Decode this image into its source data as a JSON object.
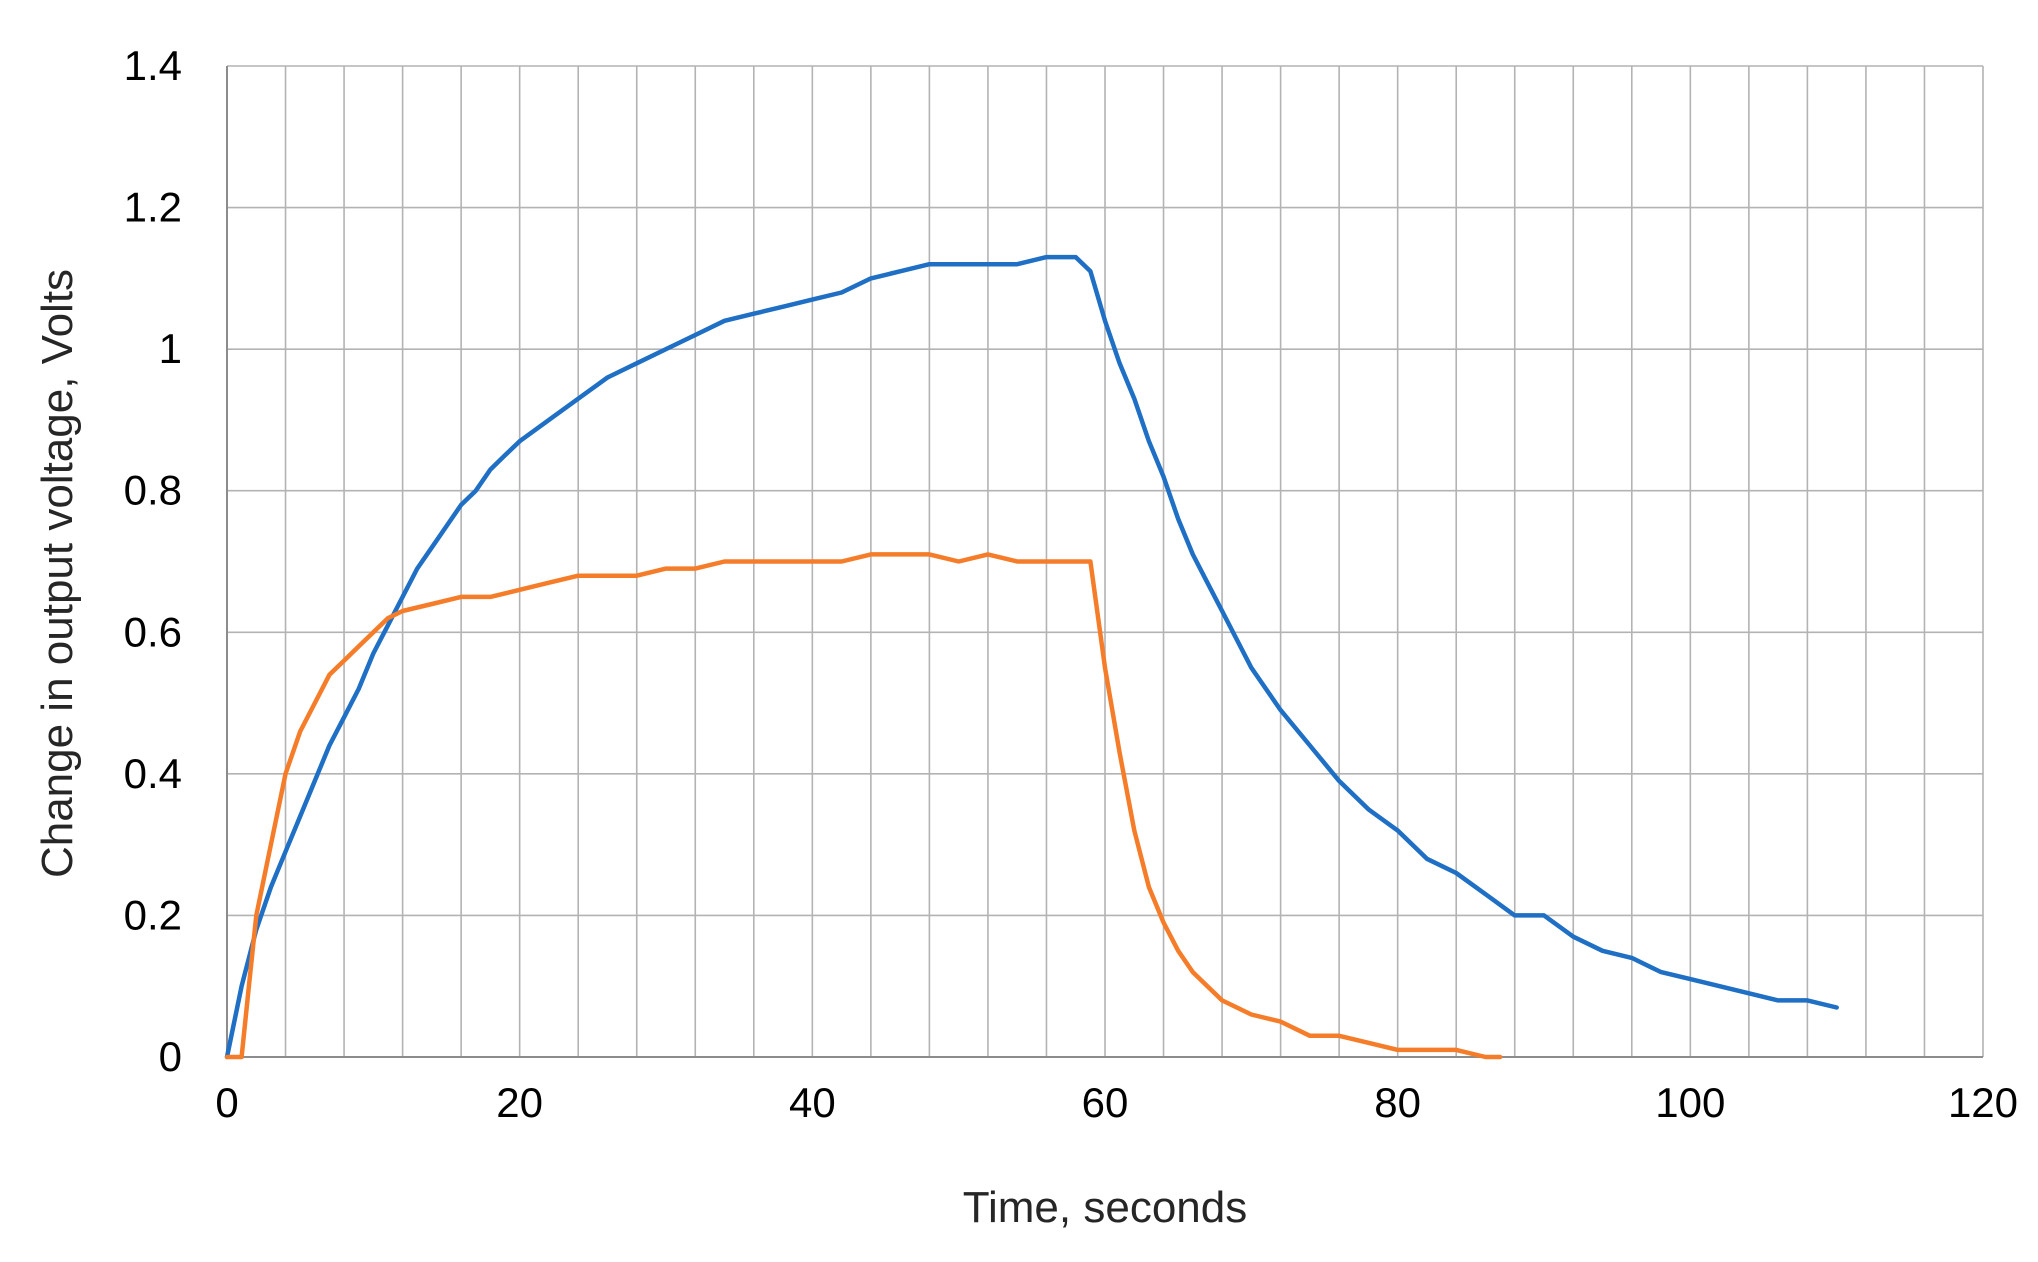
{
  "chart_data": {
    "type": "line",
    "title": "",
    "xlabel": "Time, seconds",
    "ylabel": "Change in output voltage, Volts",
    "xlim": [
      0,
      120
    ],
    "ylim": [
      0,
      1.4
    ],
    "x_major_ticks": [
      "0",
      "20",
      "40",
      "60",
      "80",
      "100",
      "120"
    ],
    "y_major_ticks": [
      "0",
      "0.2",
      "0.4",
      "0.6",
      "0.8",
      "1",
      "1.2",
      "1.4"
    ],
    "x_minor_step": 4,
    "y_minor_step": 0.2,
    "grid": true,
    "legend": "none",
    "series": [
      {
        "color": "#1f6fc5",
        "x": [
          0,
          1,
          2,
          3,
          4,
          5,
          6,
          7,
          8,
          9,
          10,
          11,
          12,
          13,
          14,
          15,
          16,
          17,
          18,
          19,
          20,
          22,
          24,
          26,
          28,
          30,
          32,
          34,
          36,
          38,
          40,
          42,
          44,
          46,
          48,
          50,
          52,
          54,
          56,
          58,
          59,
          60,
          61,
          62,
          63,
          64,
          65,
          66,
          67,
          68,
          69,
          70,
          72,
          74,
          76,
          78,
          80,
          82,
          84,
          86,
          88,
          90,
          92,
          94,
          96,
          98,
          100,
          102,
          104,
          106,
          108,
          110
        ],
        "y": [
          0,
          0.1,
          0.18,
          0.24,
          0.29,
          0.34,
          0.39,
          0.44,
          0.48,
          0.52,
          0.57,
          0.61,
          0.65,
          0.69,
          0.72,
          0.75,
          0.78,
          0.8,
          0.83,
          0.85,
          0.87,
          0.9,
          0.93,
          0.96,
          0.98,
          1.0,
          1.02,
          1.04,
          1.05,
          1.06,
          1.07,
          1.08,
          1.1,
          1.11,
          1.12,
          1.12,
          1.12,
          1.12,
          1.13,
          1.13,
          1.11,
          1.04,
          0.98,
          0.93,
          0.87,
          0.82,
          0.76,
          0.71,
          0.67,
          0.63,
          0.59,
          0.55,
          0.49,
          0.44,
          0.39,
          0.35,
          0.32,
          0.28,
          0.26,
          0.23,
          0.2,
          0.2,
          0.17,
          0.15,
          0.14,
          0.12,
          0.11,
          0.1,
          0.09,
          0.08,
          0.08,
          0.07
        ]
      },
      {
        "color": "#f57d2a",
        "x": [
          0,
          1,
          1.5,
          2,
          3,
          4,
          5,
          6,
          7,
          8,
          9,
          10,
          11,
          12,
          14,
          16,
          18,
          20,
          22,
          24,
          26,
          28,
          30,
          32,
          34,
          36,
          38,
          40,
          42,
          44,
          46,
          48,
          50,
          52,
          54,
          56,
          58,
          59,
          60,
          61,
          62,
          63,
          64,
          65,
          66,
          67,
          68,
          70,
          72,
          74,
          76,
          78,
          80,
          82,
          84,
          86,
          87
        ],
        "y": [
          0,
          0,
          0.1,
          0.2,
          0.3,
          0.4,
          0.46,
          0.5,
          0.54,
          0.56,
          0.58,
          0.6,
          0.62,
          0.63,
          0.64,
          0.65,
          0.65,
          0.66,
          0.67,
          0.68,
          0.68,
          0.68,
          0.69,
          0.69,
          0.7,
          0.7,
          0.7,
          0.7,
          0.7,
          0.71,
          0.71,
          0.71,
          0.7,
          0.71,
          0.7,
          0.7,
          0.7,
          0.7,
          0.55,
          0.43,
          0.32,
          0.24,
          0.19,
          0.15,
          0.12,
          0.1,
          0.08,
          0.06,
          0.05,
          0.03,
          0.03,
          0.02,
          0.01,
          0.01,
          0.01,
          0.0,
          0.0
        ]
      }
    ]
  }
}
